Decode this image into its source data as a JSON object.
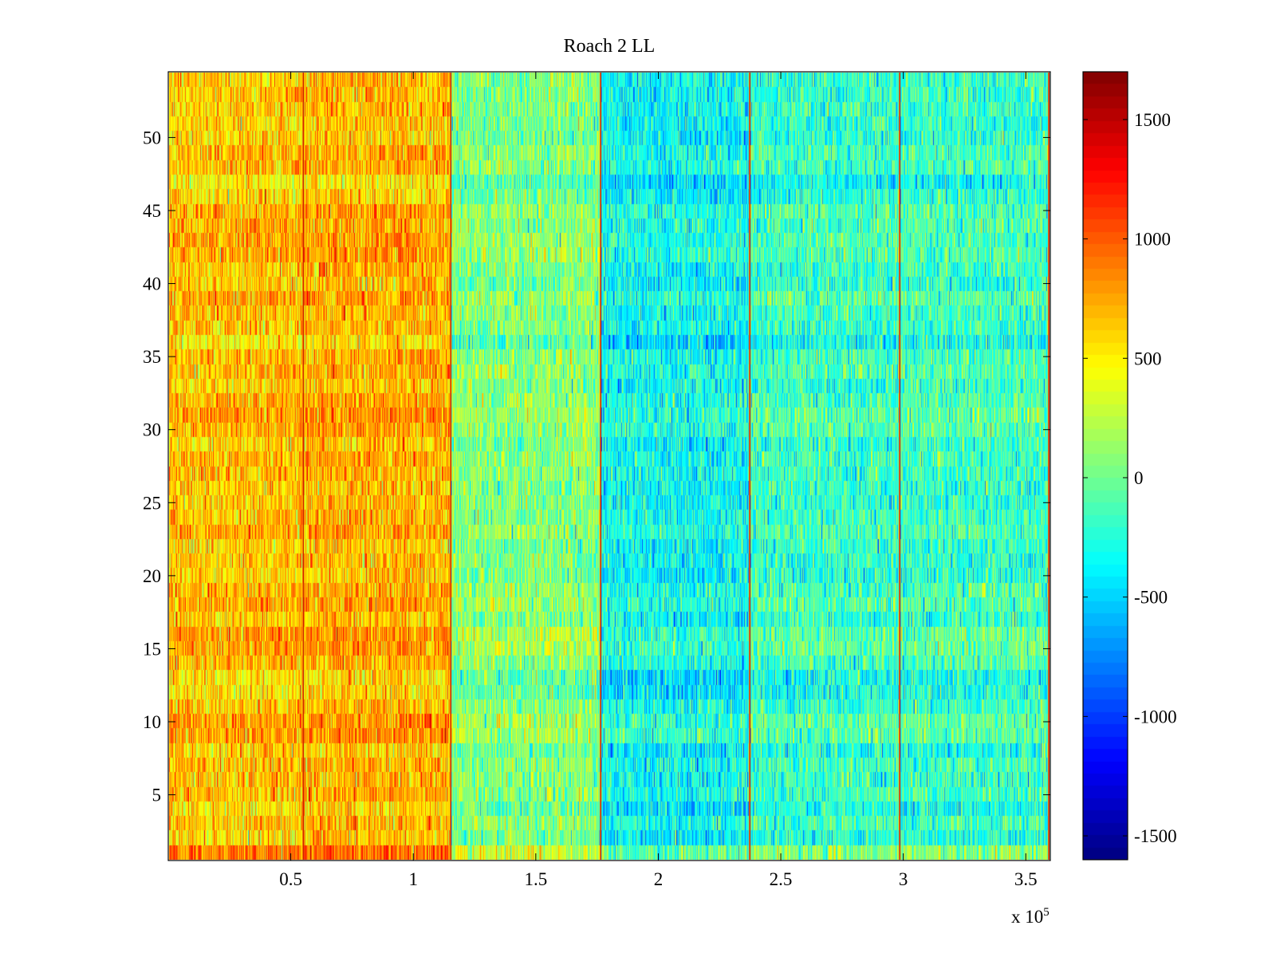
{
  "chart_data": {
    "type": "heatmap",
    "title": "Roach 2 LL",
    "xlabel": "",
    "ylabel": "",
    "x_exponent_label": {
      "prefix": "x 10",
      "exponent": "5"
    },
    "xlim": [
      0,
      3.6
    ],
    "ylim": [
      0.5,
      54.5
    ],
    "x_ticks": [
      0.5,
      1,
      1.5,
      2,
      2.5,
      3,
      3.5
    ],
    "x_tick_labels": [
      "0.5",
      "1",
      "1.5",
      "2",
      "2.5",
      "3",
      "3.5"
    ],
    "y_ticks": [
      5,
      10,
      15,
      20,
      25,
      30,
      35,
      40,
      45,
      50
    ],
    "y_tick_labels": [
      "5",
      "10",
      "15",
      "20",
      "25",
      "30",
      "35",
      "40",
      "45",
      "50"
    ],
    "rows": 54,
    "columns": 1100,
    "colormap": "jet",
    "color_range": [
      -1600,
      1700
    ],
    "colorbar_ticks": [
      1500,
      1000,
      500,
      0,
      -500,
      -1000,
      -1500
    ],
    "colorbar_tick_labels": [
      "1500",
      "1000",
      "500",
      "0",
      "-500",
      "-1000",
      "-1500"
    ],
    "vertical_boundaries_x": [
      0.547,
      1.155,
      1.765,
      2.375,
      2.99,
      3.6
    ],
    "boundary_value": 1500,
    "segment_mean_values": [
      {
        "x_range": [
          0.0,
          0.547
        ],
        "mean": 650
      },
      {
        "x_range": [
          0.547,
          1.155
        ],
        "mean": 700
      },
      {
        "x_range": [
          1.155,
          1.765
        ],
        "mean": 60
      },
      {
        "x_range": [
          1.765,
          2.375
        ],
        "mean": -330
      },
      {
        "x_range": [
          2.375,
          2.99
        ],
        "mean": -180
      },
      {
        "x_range": [
          2.99,
          3.6
        ],
        "mean": -170
      }
    ],
    "noise_std": 230
  }
}
